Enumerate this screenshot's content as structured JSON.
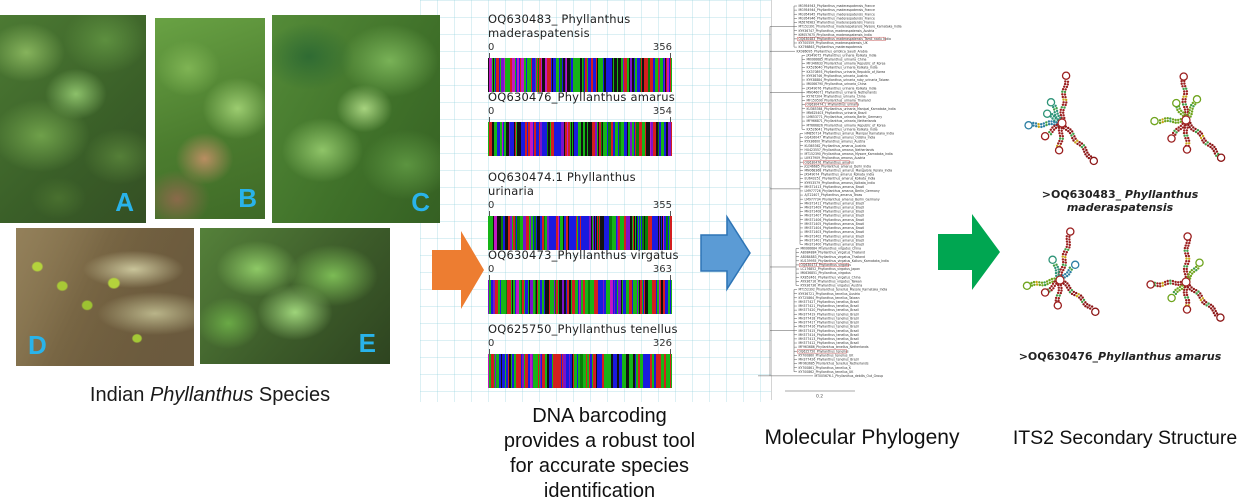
{
  "photos": {
    "caption_prefix": "Indian ",
    "caption_italic": "Phyllanthus",
    "caption_suffix": " Species",
    "labels": [
      "A",
      "B",
      "C",
      "D",
      "E"
    ]
  },
  "barcoding": {
    "entries": [
      {
        "title": "OQ630483_ Phyllanthus maderaspatensis",
        "start": "0",
        "end": "356"
      },
      {
        "title": "OQ630476_Phyllanthus amarus",
        "start": "0",
        "end": "354"
      },
      {
        "title": "OQ630474.1 Phyllanthus urinaria",
        "start": "0",
        "end": "355"
      },
      {
        "title": "OQ630473_Phyllanthus virgatus",
        "start": "0",
        "end": "363"
      },
      {
        "title": "OQ625750_Phyllanthus tenellus",
        "start": "0",
        "end": "326"
      }
    ],
    "caption_lines": [
      "DNA barcoding",
      "provides a robust tool",
      "for accurate species",
      "identification"
    ],
    "bar_palette": [
      "#17b417",
      "#1a1adf",
      "#d31f1f",
      "#121212",
      "#7c14c9",
      "#0a7d0a",
      "#c417c4"
    ]
  },
  "phylogeny": {
    "caption": "Molecular Phylogeny",
    "scale_label": "0.2",
    "clusters": [
      {
        "tips": [
          "MG954943_Phyllanthus_maderaspatensis_France",
          "MG954944_Phyllanthus_maderaspatensis_France",
          "MG954945_Phyllanthus_maderaspatensis_France",
          "MG954946_Phyllanthus_maderaspatensis_France",
          "MZ676983_Phyllanthus_maderaspatensis_France",
          "MT152391_Phyllanthus_maderaspatensis_Mysore_Karnataka_India",
          "KY936747_Phyllanthus_maderaspatensis_Austria",
          "KM057675_Phyllanthus_maderaspatensis_India",
          "OQ630483_Phyllanthus_maderaspatensis_Tamil_nadu_India",
          "KY700559_Phyllanthus_maderaspatensis_UK",
          "KX766863_Phyllanthus_maderaspatensis"
        ]
      },
      {
        "tips": [
          "KX086095_Phyllanthus_emblica_Saudi_Arabia"
        ]
      },
      {
        "tips": [
          "JX949075_Phyllanthus_urinaria_Kolkata_India",
          "MK066685_Phyllanthus_urinaria_China",
          "MF346633_Phyllanthus_urinaria_Republic_of_Korea",
          "KX526040_Phyllanthus_urinaria_Kolkata_India",
          "KX370893_Phyllanthus_urinaria_Republic_of_Korea",
          "KY936746_Phyllanthus_urinaria_Austria",
          "KY938884_Phyllanthus_urinaria_ruby_urinaria_Taiwan",
          "MK066790_Phyllanthus_urinaria_China",
          "JX949076_Phyllanthus_urinaria_Kolkata_India",
          "MN046071_Phyllanthus_urinaria_Netherlands",
          "KY767204_Phyllanthus_urinaria_China",
          "MF159590_Phyllanthus_urinaria_Thailand",
          "OQ630474.1_Phyllanthus_urinaria",
          "KU365364_Phyllanthus_urinaria_Manipal_Karnataka_India",
          "MN625403_Phyllanthus_urinaria_Brazil",
          "LM653771_Phyllanthus_urinaria_Berlin_Germany",
          "MF966871_Phyllanthus_urinaria_Netherlands",
          "MT666826_Phyllanthus_urinaria_Republic_of_Korea",
          "KX526041_Phyllanthus_urinaria_Kolkata_India"
        ]
      },
      {
        "tips": [
          "HM850714_Phyllanthus_amarus_Manipal_Karnataka_India",
          "GQ426047_Phyllanthus_amarus_Odisha_India",
          "KY936600_Phyllanthus_amarus_Austria",
          "KU365362_Phyllanthus_amarus_Austria",
          "HU423557_Phyllanthus_amarus_Netherlands",
          "MT152390_Phyllanthus_amarus_Mysore_Karnataka_India",
          "LK937909_Phyllanthus_amarus_Austria",
          "OQ630476_Phyllanthus_amarus",
          "JQ246685_Phyllanthus_amarus_Delhi_India",
          "MN068368_Phyllanthus_amarus_Mangalore_Kerala_India",
          "JX949074_Phyllanthus_amarus_Kolkata_India",
          "EU643251_Phyllanthus_amarus_Kolkata_India",
          "KY953579_Phyllanthus_amarus_Kolkata_India",
          "MH371413_Phyllanthus_amarus_Brazil",
          "LM977726_Phyllanthus_amarus_Berlin_Germany",
          "AJ722407_Phyllanthus_amarus_Texas",
          "LM977734_Phyllanthus_amarus_Berlin_Germany",
          "MH371411_Phyllanthus_amarus_Brazil",
          "MH371409_Phyllanthus_amarus_Brazil",
          "MH371408_Phyllanthus_amarus_Brazil",
          "MH371407_Phyllanthus_amarus_Brazil",
          "MH371406_Phyllanthus_amarus_Brazil",
          "MH371405_Phyllanthus_amarus_Brazil",
          "MH371404_Phyllanthus_amarus_Brazil",
          "MH371403_Phyllanthus_amarus_Brazil",
          "MH371402_Phyllanthus_amarus_Brazil",
          "MH371401_Phyllanthus_amarus_Brazil",
          "MH371400_Phyllanthus_amarus_Brazil"
        ]
      },
      {
        "tips": [
          "MK066684_Phyllanthus_virgatus_China",
          "AB084884_Phyllanthus_virgatus_Thailand",
          "AB084883_Phyllanthus_virgatus_Thailand",
          "KU139955_Phyllanthus_virgatus_Kolluru_Karnataka_India",
          "OQ630473_Phyllanthus_virgatus",
          "LC176852_Phyllanthus_virgatus_Japan",
          "MK636851_Phyllanthus_virgatus",
          "KX852461_Phyllanthus_virgatus_China",
          "AY936716_Phyllanthus_virgatus_Taiwan",
          "KY936736_Phyllanthus_virgatus_Austria"
        ]
      },
      {
        "tips": [
          "MT152392_Phyllanthus_tenellus_Mysore_Karnataka_India",
          "KY936721_Phyllanthus_tenellus_Austria",
          "KY725864_Phyllanthus_tenellus_Taiwan",
          "MH377427_Phyllanthus_tenellus_Brazil",
          "MH377421_Phyllanthus_tenellus_Brazil",
          "MH377420_Phyllanthus_tenellus_Brazil",
          "MH377419_Phyllanthus_tenellus_Brazil",
          "MH377418_Phyllanthus_tenellus_Brazil",
          "MH377417_Phyllanthus_tenellus_Brazil",
          "MH377416_Phyllanthus_tenellus_Brazil",
          "MH377415_Phyllanthus_tenellus_Brazil",
          "MH377414_Phyllanthus_tenellus_Brazil",
          "MH377413_Phyllanthus_tenellus_Brazil",
          "MH377412_Phyllanthus_tenellus_Brazil",
          "MF963686_Phyllanthus_tenellus_Netherlands",
          "OQ625750_Phyllanthus_tenellus",
          "KY700860_Phyllanthus_tenellus_UK",
          "MH377426_Phyllanthus_tenellus_Brazil",
          "MF963685_Phyllanthus_tenellus_Netherlands",
          "KY700861_Phyllanthus_tenellus_K",
          "KY700862_Phyllanthus_tenellus_UK"
        ]
      },
      {
        "tips": [
          "MT005676.1_Phyllanthus_debilis_Out_Group"
        ]
      }
    ]
  },
  "its2": {
    "caption": "ITS2 Secondary Structure",
    "labels": [
      {
        "prefix": ">OQ630483_ ",
        "species": "Phyllanthus maderaspatensis"
      },
      {
        "prefix": ">OQ630476_",
        "species": "Phyllanthus amarus"
      }
    ]
  },
  "arrows": {
    "orange": "#ED7D31",
    "blue": "#5B9BD5",
    "blue_stroke": "#2E75B6",
    "green": "#00A651"
  }
}
